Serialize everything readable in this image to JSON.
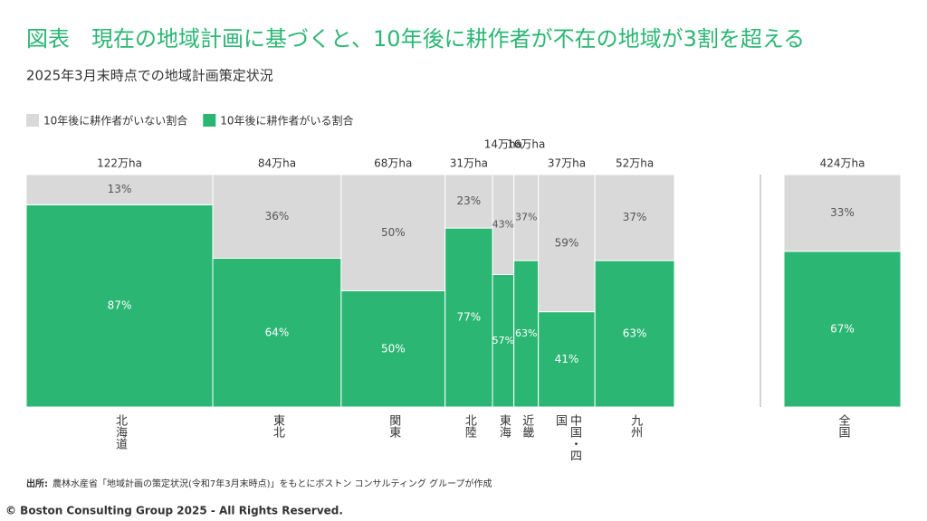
{
  "header": {
    "title": "図表　現在の地域計画に基づくと、10年後に耕作者が不在の地域が3割を超える",
    "subtitle": "2025年3月末時点での地域計画策定状況"
  },
  "chart_data": {
    "type": "marimekko",
    "categories": [
      "北海道",
      "東北",
      "関東",
      "北陸",
      "東海",
      "近畿",
      "中国・四国",
      "九州",
      "全国"
    ],
    "widths": [
      122,
      84,
      68,
      31,
      14,
      16,
      37,
      52,
      424
    ],
    "width_labels": [
      "122万ha",
      "84万ha",
      "68万ha",
      "31万ha",
      "14万ha",
      "16万ha",
      "37万ha",
      "52万ha",
      "424万ha"
    ],
    "series": [
      {
        "name": "10年後に耕作者がいない割合",
        "color": "#d9d9d9",
        "values": [
          13,
          36,
          50,
          23,
          43,
          37,
          59,
          37,
          33
        ],
        "value_labels": [
          "13%",
          "36%",
          "50%",
          "23%",
          "43%",
          "37%",
          "59%",
          "37%",
          "33%"
        ]
      },
      {
        "name": "10年後に耕作者がいる割合",
        "color": "#2bb673",
        "values": [
          87,
          64,
          50,
          77,
          57,
          63,
          41,
          63,
          67
        ],
        "value_labels": [
          "87%",
          "64%",
          "50%",
          "77%",
          "57%",
          "63%",
          "41%",
          "63%",
          "67%"
        ]
      }
    ],
    "ylim": [
      0,
      100
    ],
    "legend": "top-left"
  },
  "footer": {
    "source_label": "出所:",
    "source_text": "農林水産省「地域計画の策定状況(令和7年3月末時点)」をもとにボストン コンサルティング グループが作成",
    "copyright": "© Boston Consulting Group 2025 - All Rights Reserved."
  }
}
